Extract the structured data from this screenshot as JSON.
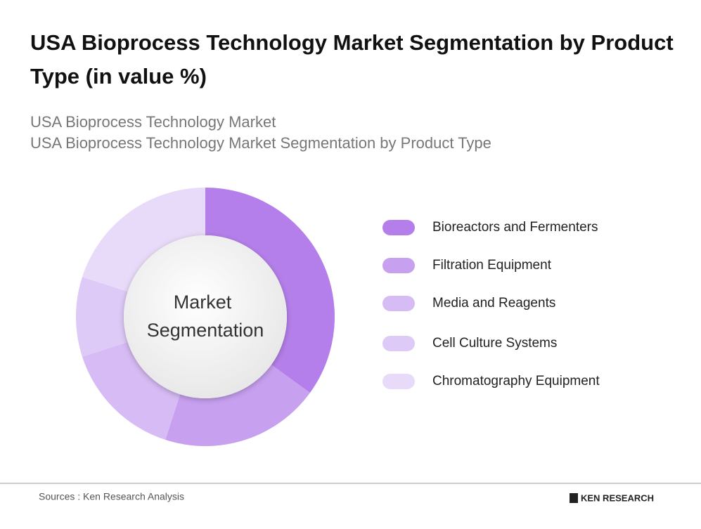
{
  "chart_data": {
    "type": "donut",
    "title": "USA Bioprocess Technology Market Segmentation by Product Type (in value %)",
    "subtitle_lines": [
      "USA Bioprocess Technology Market",
      "USA Bioprocess Technology Market Segmentation by Product Type"
    ],
    "center_label": [
      "Market",
      "Segmentation"
    ],
    "categories": [
      "Bioreactors and Fermenters",
      "Filtration Equipment",
      "Media and Reagents",
      "Cell Culture Systems",
      "Chromatography Equipment"
    ],
    "values": [
      35,
      20,
      15,
      10,
      20
    ],
    "colors": [
      "#b47fea",
      "#c7a0ef",
      "#d6bbf4",
      "#decaf6",
      "#e8dbf9"
    ],
    "legend": "right"
  },
  "footer": {
    "source": "Sources : Ken Research Analysis",
    "logo": "KEN RESEARCH"
  }
}
